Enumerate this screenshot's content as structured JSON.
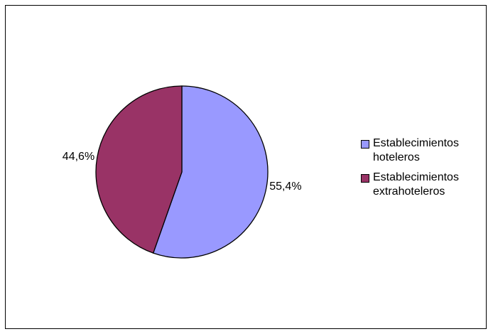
{
  "chart_data": {
    "type": "pie",
    "categories": [
      "Establecimientos hoteleros",
      "Establecimientos extrahoteleros"
    ],
    "values": [
      55.4,
      44.6
    ],
    "data_labels": [
      "55,4%",
      "44,6%"
    ],
    "colors": [
      "#9999FF",
      "#993366"
    ],
    "title": "",
    "legend_position": "right",
    "start_angle": "12 o'clock",
    "direction": "clockwise"
  }
}
